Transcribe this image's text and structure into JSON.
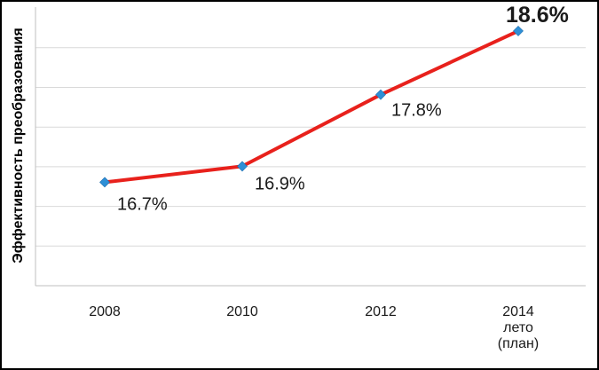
{
  "chart_data": {
    "type": "line",
    "title": "",
    "xlabel": "",
    "ylabel": "Эффективность преобразования",
    "categories": [
      [
        "2008"
      ],
      [
        "2010"
      ],
      [
        "2012"
      ],
      [
        "2014",
        "лето",
        "(план)"
      ]
    ],
    "series": [
      {
        "values": [
          16.7,
          16.9,
          17.8,
          18.6
        ],
        "color": "#e8211c",
        "marker_color": "#2e8fd6"
      }
    ],
    "data_labels": [
      "16.7%",
      "16.9%",
      "17.8%",
      "18.6%"
    ],
    "highlight_label_index": 3,
    "highlight_color": "#e8211c",
    "ylim": [
      15.4,
      18.9
    ],
    "grid": true,
    "legend": "none"
  }
}
